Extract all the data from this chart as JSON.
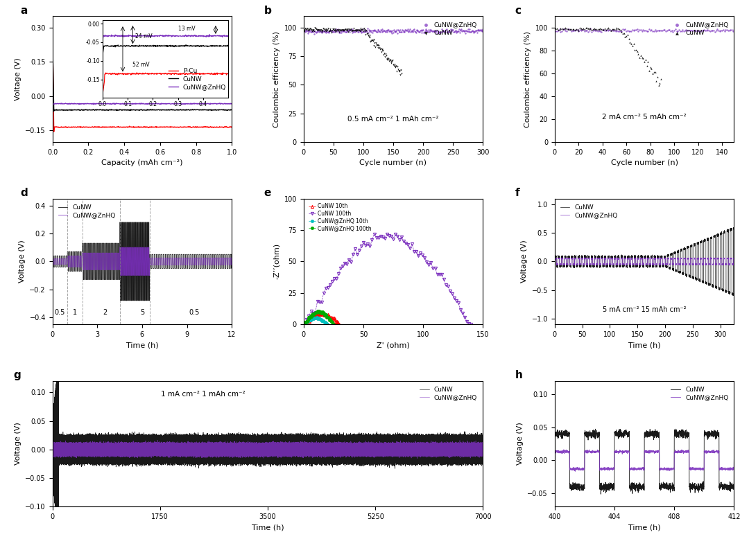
{
  "colors": {
    "red": "#FF0000",
    "black": "#000000",
    "purple": "#7B2FBE",
    "cyan": "#00BFBF",
    "green": "#00AA00",
    "bg": "#FFFFFF"
  },
  "panel_a": {
    "title": "a",
    "xlabel": "Capacity (mAh cm⁻²)",
    "ylabel": "Voltage (V)",
    "xlim": [
      0,
      1.0
    ],
    "ylim": [
      -0.2,
      0.35
    ],
    "yticks": [
      -0.15,
      0.0,
      0.15,
      0.3
    ],
    "xticks": [
      0.0,
      0.2,
      0.4,
      0.6,
      0.8,
      1.0
    ],
    "legend": [
      "P-Cu",
      "CuNW",
      "CuNW@ZnHQ"
    ]
  },
  "panel_b": {
    "title": "b",
    "xlabel": "Cycle number (n)",
    "ylabel": "Coulombic efficiency (%)",
    "xlim": [
      0,
      300
    ],
    "ylim": [
      0,
      110
    ],
    "yticks": [
      0,
      25,
      50,
      75,
      100
    ],
    "annotation": "0.5 mA cm⁻² 1 mAh cm⁻²",
    "legend": [
      "CuNW",
      "CuNW@ZnHQ"
    ]
  },
  "panel_c": {
    "title": "c",
    "xlabel": "Cycle number (n)",
    "ylabel": "Coulombic efficiency (%)",
    "xlim": [
      0,
      150
    ],
    "ylim": [
      0,
      110
    ],
    "yticks": [
      0,
      20,
      40,
      60,
      80,
      100
    ],
    "annotation": "2 mA cm⁻² 5 mAh cm⁻²",
    "legend": [
      "CuNW",
      "CuNW@ZnHQ"
    ]
  },
  "panel_d": {
    "title": "d",
    "xlabel": "Time (h)",
    "ylabel": "Voltage (V)",
    "xlim": [
      0,
      12
    ],
    "ylim": [
      -0.45,
      0.45
    ],
    "yticks": [
      -0.4,
      -0.2,
      0.0,
      0.2,
      0.4
    ],
    "xticks": [
      0,
      3,
      6,
      9,
      12
    ],
    "rate_labels": [
      "0.5",
      "1",
      "2",
      "5",
      "0.5"
    ],
    "rate_positions": [
      0.5,
      1.5,
      3.5,
      6.0,
      9.5
    ],
    "vline_positions": [
      1.0,
      2.0,
      4.5,
      6.5
    ],
    "legend": [
      "CuNW",
      "CuNW@ZnHQ"
    ]
  },
  "panel_e": {
    "title": "e",
    "xlabel": "Z' (ohm)",
    "ylabel": "-Z’’(ohm)",
    "xlim": [
      0,
      150
    ],
    "ylim": [
      0,
      100
    ],
    "yticks": [
      0,
      25,
      50,
      75,
      100
    ],
    "xticks": [
      0,
      50,
      100,
      150
    ],
    "legend": [
      "CuNW 10th",
      "CuNW 100th",
      "CuNW@ZnHQ 10th",
      "CuNW@ZnHQ 100th"
    ]
  },
  "panel_f": {
    "title": "f",
    "xlabel": "Time (h)",
    "ylabel": "Voltage (V)",
    "xlim": [
      0,
      325
    ],
    "ylim": [
      -1.1,
      1.1
    ],
    "yticks": [
      -1.0,
      -0.5,
      0.0,
      0.5,
      1.0
    ],
    "annotation": "5 mA cm⁻² 15 mAh cm⁻²",
    "legend": [
      "CuNW",
      "CuNW@ZnHQ"
    ]
  },
  "panel_g": {
    "title": "g",
    "xlabel": "Time (h)",
    "ylabel": "Voltage (V)",
    "xlim": [
      0,
      7000
    ],
    "ylim": [
      -0.1,
      0.12
    ],
    "yticks": [
      -0.1,
      -0.05,
      0.0,
      0.05,
      0.1
    ],
    "xticks": [
      0,
      1750,
      3500,
      5250,
      7000
    ],
    "annotation": "1 mA cm⁻² 1 mAh cm⁻²",
    "legend": [
      "CuNW",
      "CuNW@ZnHQ"
    ]
  },
  "panel_h": {
    "title": "h",
    "xlabel": "Time (h)",
    "ylabel": "Voltage (V)",
    "xlim": [
      400,
      412
    ],
    "ylim": [
      -0.07,
      0.12
    ],
    "yticks": [
      -0.05,
      0.0,
      0.05,
      0.1
    ],
    "xticks": [
      400,
      404,
      408,
      412
    ],
    "legend": [
      "CuNW",
      "CuNW@ZnHQ"
    ]
  }
}
